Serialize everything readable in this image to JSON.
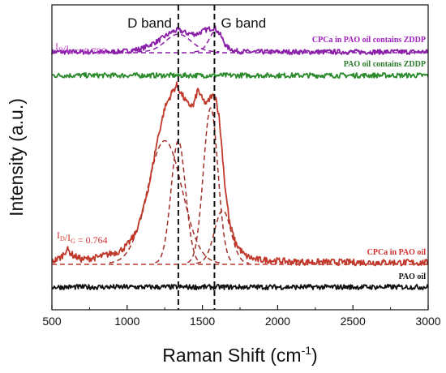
{
  "chart_data": {
    "type": "line",
    "title": "",
    "xlabel": "Raman Shift",
    "xlabel_unit_base": "cm",
    "xlabel_unit_exp": "-1",
    "ylabel": "Intensity (a.u.)",
    "xlim": [
      500,
      3000
    ],
    "xticks": [
      "500",
      "1000",
      "1500",
      "2000",
      "2500",
      "3000"
    ],
    "y_tick_labels": false,
    "band_markers": [
      {
        "label": "D band",
        "x": 1340
      },
      {
        "label": "G band",
        "x": 1580
      }
    ],
    "series": [
      {
        "name": "CPCa in PAO oil contains ZDDP",
        "color": "#8a1fa8",
        "label_color": "#a020c0",
        "level": 0.0,
        "noise": 0.006,
        "points": [
          [
            500,
            0.0
          ],
          [
            900,
            0.0
          ],
          [
            1000,
            0.002
          ],
          [
            1100,
            0.008
          ],
          [
            1200,
            0.025
          ],
          [
            1300,
            0.048
          ],
          [
            1340,
            0.052
          ],
          [
            1400,
            0.044
          ],
          [
            1460,
            0.042
          ],
          [
            1520,
            0.052
          ],
          [
            1580,
            0.058
          ],
          [
            1620,
            0.04
          ],
          [
            1660,
            0.012
          ],
          [
            1720,
            0.002
          ],
          [
            1800,
            0.0
          ],
          [
            3000,
            0.0
          ]
        ],
        "ratio_label_prefix": "I",
        "ratio_label_sub1": "D",
        "ratio_label_sep": "/I",
        "ratio_label_sub2": "G",
        "ratio_label_value": " = 0.786",
        "ratio_label_color": "#c040c8"
      },
      {
        "name": "PAO oil contains ZDDP",
        "color": "#2b8a2b",
        "label_color": "#2a7a2a",
        "level": 0.0,
        "noise": 0.006,
        "points": [
          [
            500,
            0.0
          ],
          [
            3000,
            0.0
          ]
        ]
      },
      {
        "name": "CPCa in PAO oil",
        "color": "#c0392b",
        "label_color": "#d03030",
        "level": 0.0,
        "noise": 0.008,
        "points": [
          [
            500,
            0.005
          ],
          [
            560,
            0.015
          ],
          [
            600,
            0.035
          ],
          [
            640,
            0.02
          ],
          [
            700,
            0.01
          ],
          [
            800,
            0.015
          ],
          [
            900,
            0.025
          ],
          [
            950,
            0.03
          ],
          [
            1000,
            0.045
          ],
          [
            1050,
            0.07
          ],
          [
            1100,
            0.12
          ],
          [
            1150,
            0.2
          ],
          [
            1200,
            0.3
          ],
          [
            1250,
            0.38
          ],
          [
            1300,
            0.42
          ],
          [
            1330,
            0.435
          ],
          [
            1360,
            0.415
          ],
          [
            1400,
            0.39
          ],
          [
            1440,
            0.385
          ],
          [
            1470,
            0.425
          ],
          [
            1500,
            0.4
          ],
          [
            1530,
            0.39
          ],
          [
            1560,
            0.41
          ],
          [
            1590,
            0.405
          ],
          [
            1610,
            0.36
          ],
          [
            1630,
            0.28
          ],
          [
            1650,
            0.19
          ],
          [
            1680,
            0.1
          ],
          [
            1720,
            0.05
          ],
          [
            1780,
            0.02
          ],
          [
            1850,
            0.01
          ],
          [
            1950,
            0.008
          ],
          [
            2100,
            0.004
          ],
          [
            3000,
            0.002
          ]
        ],
        "ratio_label_prefix": "I",
        "ratio_label_sub1": "D",
        "ratio_label_sep": "/I",
        "ratio_label_sub2": "G",
        "ratio_label_value": " = 0.764",
        "ratio_label_color": "#d03030"
      },
      {
        "name": "PAO oil",
        "color": "#111111",
        "label_color": "#111111",
        "level": 0.0,
        "noise": 0.006,
        "points": [
          [
            500,
            0.0
          ],
          [
            3000,
            0.0
          ]
        ]
      }
    ],
    "fitted_components": [
      {
        "series": "CPCa in PAO oil contains ZDDP",
        "color": "#8a1fa8",
        "center": 1340,
        "width": 85,
        "height": 0.042
      },
      {
        "series": "CPCa in PAO oil contains ZDDP",
        "color": "#8a1fa8",
        "center": 1590,
        "width": 45,
        "height": 0.05
      },
      {
        "series": "CPCa in PAO oil",
        "color": "#a0302a",
        "center": 1250,
        "width": 115,
        "height": 0.3
      },
      {
        "series": "CPCa in PAO oil",
        "color": "#a0302a",
        "center": 1340,
        "width": 48,
        "height": 0.3
      },
      {
        "series": "CPCa in PAO oil",
        "color": "#a0302a",
        "center": 1555,
        "width": 48,
        "height": 0.38
      },
      {
        "series": "CPCa in PAO oil",
        "color": "#a0302a",
        "center": 1635,
        "width": 55,
        "height": 0.13
      }
    ]
  }
}
